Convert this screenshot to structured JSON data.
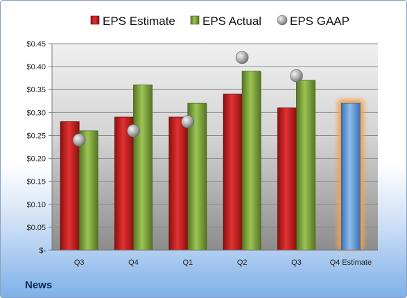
{
  "chart_data": {
    "type": "bar",
    "categories": [
      "Q3",
      "Q4",
      "Q1",
      "Q2",
      "Q3",
      "Q4 Estimate"
    ],
    "series": [
      {
        "name": "EPS Estimate",
        "type": "bar",
        "color": "#c81e1e",
        "values": [
          0.28,
          0.29,
          0.29,
          0.34,
          0.31,
          null
        ]
      },
      {
        "name": "EPS Actual",
        "type": "bar",
        "color": "#7aa23a",
        "values": [
          0.26,
          0.36,
          0.32,
          0.39,
          0.37,
          null
        ]
      },
      {
        "name": "EPS GAAP",
        "type": "scatter",
        "color": "#a9a9a9",
        "values": [
          0.24,
          0.26,
          0.28,
          0.42,
          0.38,
          null
        ]
      },
      {
        "name": "Q4 Estimate",
        "type": "bar",
        "color": "#5b9bd5",
        "values": [
          null,
          null,
          null,
          null,
          null,
          0.32
        ]
      }
    ],
    "yticks": [
      "$-",
      "$0.05",
      "$0.10",
      "$0.15",
      "$0.20",
      "$0.25",
      "$0.30",
      "$0.35",
      "$0.40",
      "$0.45"
    ],
    "ylim": [
      0,
      0.45
    ],
    "legend": {
      "position": "top",
      "entries": [
        "EPS Estimate",
        "EPS Actual",
        "EPS GAAP"
      ]
    },
    "grid": true
  },
  "brand": "News"
}
